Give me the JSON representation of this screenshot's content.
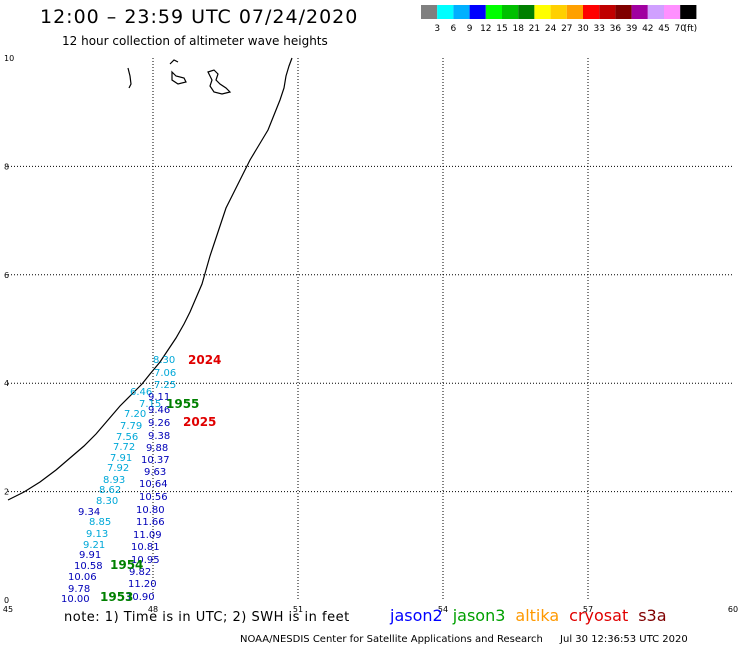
{
  "header": {
    "title": "12:00 – 23:59 UTC 07/24/2020",
    "subtitle": "12 hour collection of altimeter wave heights"
  },
  "color_scale": {
    "labels": [
      "3",
      "6",
      "9",
      "12",
      "15",
      "18",
      "21",
      "24",
      "27",
      "30",
      "33",
      "36",
      "39",
      "42",
      "45",
      "70"
    ],
    "unit": "(ft)",
    "colors": [
      "#808080",
      "#00ffff",
      "#00b0ff",
      "#0000ff",
      "#00ff00",
      "#00c000",
      "#008000",
      "#ffff00",
      "#ffd000",
      "#ffa000",
      "#ff0000",
      "#c00000",
      "#800000",
      "#a000a0",
      "#d0a0ff",
      "#ff90ff",
      "#000000"
    ]
  },
  "map": {
    "x_axis": {
      "range": [
        45,
        60
      ],
      "ticks": [
        "45",
        "48",
        "51",
        "54",
        "57",
        "60"
      ]
    },
    "y_axis": {
      "range": [
        0,
        10
      ],
      "ticks": [
        "0",
        "2",
        "4",
        "6",
        "8",
        "10"
      ]
    }
  },
  "observations": {
    "cyan_track": {
      "color": "#00a8d8",
      "values": [
        "8.30",
        "7.06",
        "7.25",
        "6.46",
        "7.15",
        "7.20",
        "7.79",
        "7.56",
        "7.72",
        "7.91",
        "7.92",
        "8.93",
        "8.62",
        "8.30",
        "8.85",
        "9.13",
        "9.21"
      ]
    },
    "blue_track": {
      "color": "#0000b8",
      "values": [
        "9.11",
        "9.46",
        "9.26",
        "9.38",
        "9.88",
        "10.37",
        "9.63",
        "10.64",
        "10.56",
        "10.80",
        "11.66",
        "11.09",
        "10.81",
        "10.95",
        "9.82",
        "11.20",
        "10.90",
        "9.34",
        "9.91",
        "10.58",
        "10.06",
        "9.78",
        "10.00"
      ]
    },
    "time_labels": [
      {
        "text": "2024",
        "color": "#e00000"
      },
      {
        "text": "1955",
        "color": "#008000"
      },
      {
        "text": "2025",
        "color": "#e00000"
      },
      {
        "text": "1954",
        "color": "#008000"
      },
      {
        "text": "1953",
        "color": "#008000"
      }
    ]
  },
  "footer": {
    "note": "note: 1) Time is in UTC; 2) SWH is in feet",
    "legend": [
      {
        "name": "jason2",
        "color": "#0000ff"
      },
      {
        "name": "jason3",
        "color": "#00a000"
      },
      {
        "name": "altika",
        "color": "#ff9900"
      },
      {
        "name": "cryosat",
        "color": "#e00000"
      },
      {
        "name": "s3a",
        "color": "#800000"
      }
    ],
    "credit": "NOAA/NESDIS Center for Satellite Applications and Research",
    "timestamp": "Jul 30 12:36:53 UTC 2020"
  }
}
